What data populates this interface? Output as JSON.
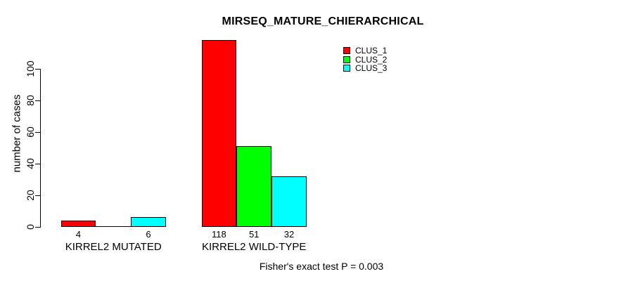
{
  "chart_data": {
    "type": "bar",
    "title": "MIRSEQ_MATURE_CHIERARCHICAL",
    "ylabel": "number of cases",
    "xlabel": "",
    "ylim": [
      0,
      118
    ],
    "yticks": [
      0,
      20,
      40,
      60,
      80,
      100
    ],
    "grid": false,
    "legend_position": "top-right-inside",
    "categories": [
      "KIRREL2 MUTATED",
      "KIRREL2 WILD-TYPE"
    ],
    "series": [
      {
        "name": "CLUS_1",
        "color": "#ff0000",
        "values": [
          4,
          118
        ]
      },
      {
        "name": "CLUS_2",
        "color": "#00ff00",
        "values": [
          0,
          51
        ]
      },
      {
        "name": "CLUS_3",
        "color": "#00ffff",
        "values": [
          6,
          32
        ]
      }
    ],
    "bar_value_labels": [
      [
        "4",
        "",
        "6"
      ],
      [
        "118",
        "51",
        "32"
      ]
    ],
    "footer": "Fisher's exact test P = 0.003",
    "colors": {
      "background": "#ffffff",
      "axis": "#000000",
      "bar_border": "#000000"
    }
  }
}
